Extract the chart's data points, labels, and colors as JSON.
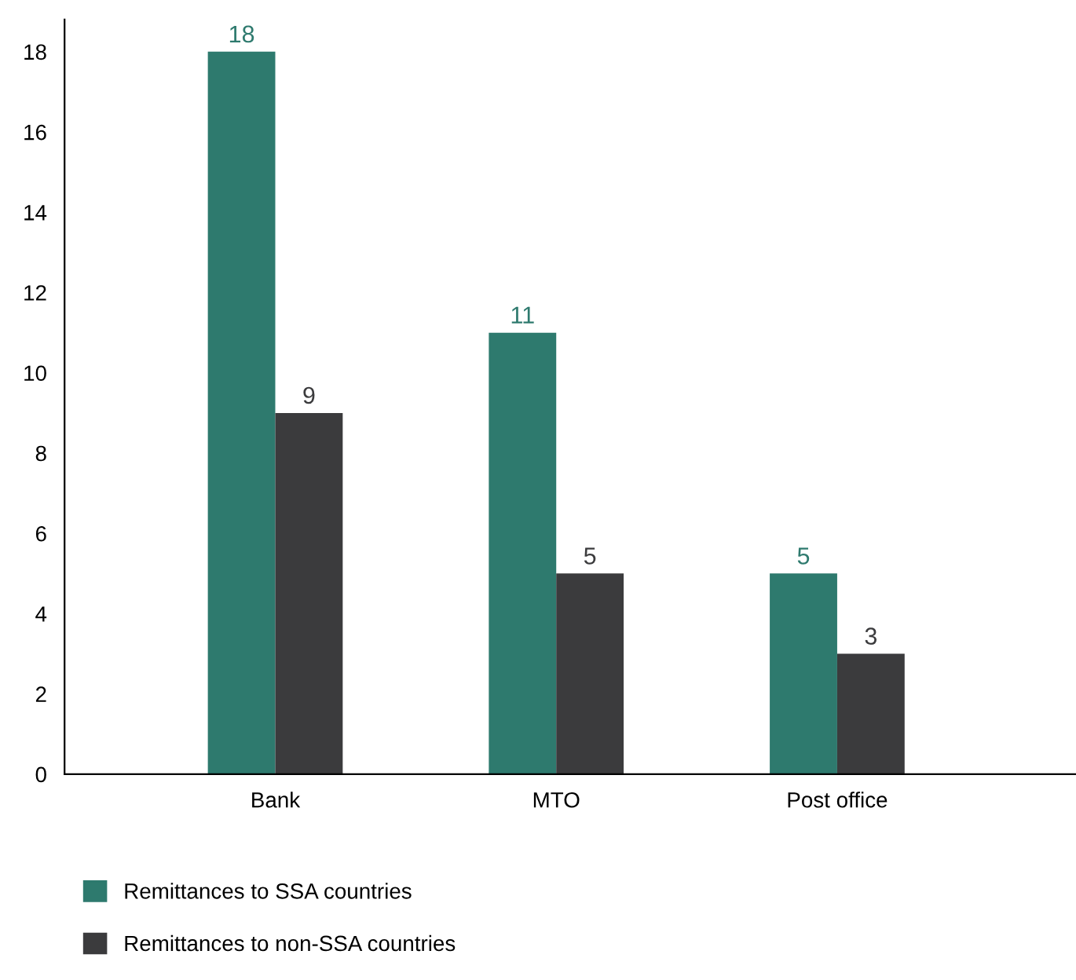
{
  "chart_data": {
    "type": "bar",
    "categories": [
      "Bank",
      "MTO",
      "Post office"
    ],
    "series": [
      {
        "name": "Remittances to SSA countries",
        "color": "#2e7a6e",
        "values": [
          18,
          11,
          5
        ]
      },
      {
        "name": "Remittances to non-SSA countries",
        "color": "#3b3b3d",
        "values": [
          9,
          5,
          3
        ]
      }
    ],
    "ylim": [
      0,
      18.8
    ],
    "yticks": [
      0,
      2,
      4,
      6,
      8,
      10,
      12,
      14,
      16,
      18
    ],
    "data_labels": true,
    "grid": false,
    "legend": "bottom"
  }
}
